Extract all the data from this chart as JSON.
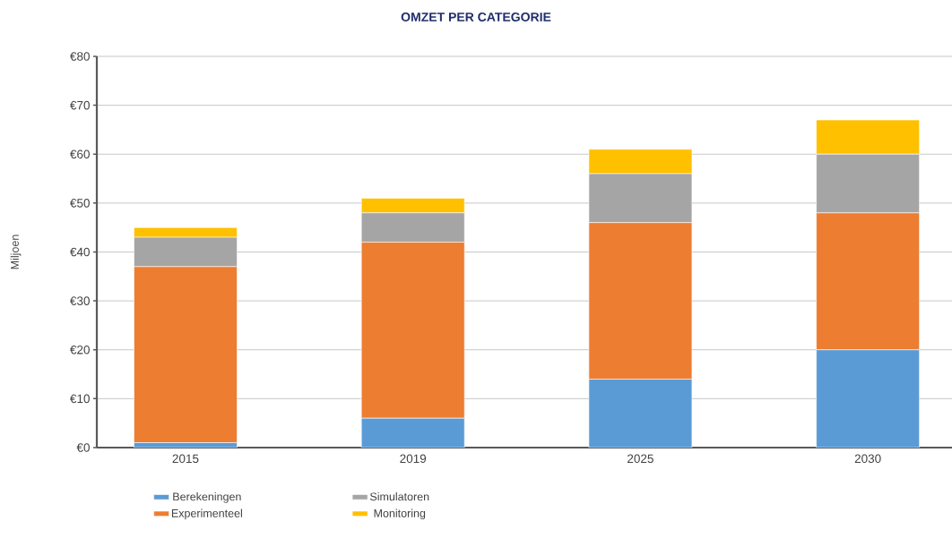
{
  "chart_data": {
    "type": "bar",
    "title": "OMZET PER CATEGORIE",
    "ylabel": "Miljoen",
    "categories": [
      "2015",
      "2019",
      "2025",
      "2030"
    ],
    "stacked": true,
    "grid": "y",
    "legend": "bottom",
    "ylim": [
      0,
      80
    ],
    "yticks": [
      {
        "value": 0,
        "label": "€0"
      },
      {
        "value": 10,
        "label": "€10"
      },
      {
        "value": 20,
        "label": "€20"
      },
      {
        "value": 30,
        "label": "€30"
      },
      {
        "value": 40,
        "label": "€40"
      },
      {
        "value": 50,
        "label": "€50"
      },
      {
        "value": 60,
        "label": "€60"
      },
      {
        "value": 70,
        "label": "€70"
      },
      {
        "value": 80,
        "label": "€80"
      }
    ],
    "series": [
      {
        "name": "Berekeningen",
        "color": "#5b9bd5",
        "values": [
          1,
          6,
          14,
          20
        ]
      },
      {
        "name": "Experimenteel",
        "color": "#ed7d31",
        "values": [
          36,
          36,
          32,
          28
        ]
      },
      {
        "name": "Simulatoren",
        "color": "#a5a5a5",
        "values": [
          6,
          6,
          10,
          12
        ]
      },
      {
        "name": "Monitoring",
        "color": "#ffc000",
        "values": [
          2,
          3,
          5,
          7
        ]
      }
    ]
  }
}
